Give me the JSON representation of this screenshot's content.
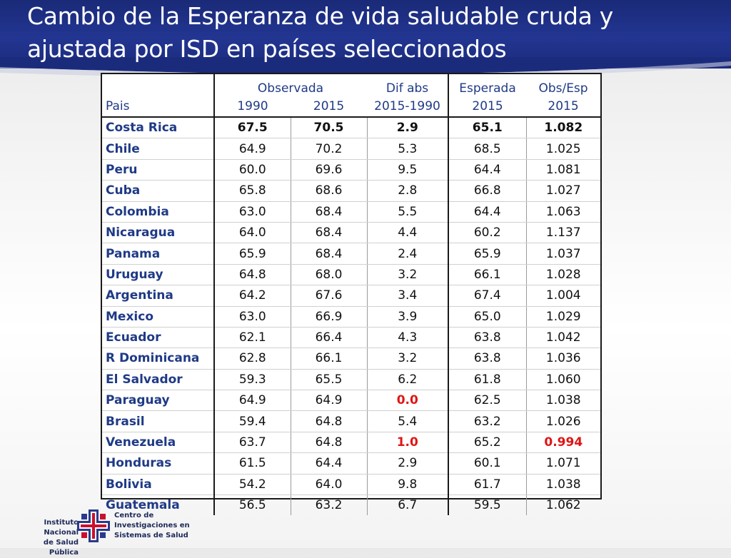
{
  "slide": {
    "title_line1": "Cambio de la Esperanza de vida saludable cruda y",
    "title_line2": "ajustada por ISD en países seleccionados"
  },
  "table": {
    "headers": {
      "pais": "Pais",
      "observada": "Observada",
      "obs_1990": "1990",
      "obs_2015": "2015",
      "dif_abs": "Dif abs",
      "dif_years": "2015-1990",
      "esperada": "Esperada",
      "esp_year": "2015",
      "obs_esp": "Obs/Esp",
      "obs_esp_year": "2015"
    },
    "rows": [
      {
        "pais": "Costa Rica",
        "v1990": "67.5",
        "v2015": "70.5",
        "dif": "2.9",
        "esp": "65.1",
        "ratio": "1.082"
      },
      {
        "pais": "Chile",
        "v1990": "64.9",
        "v2015": "70.2",
        "dif": "5.3",
        "esp": "68.5",
        "ratio": "1.025"
      },
      {
        "pais": "Peru",
        "v1990": "60.0",
        "v2015": "69.6",
        "dif": "9.5",
        "esp": "64.4",
        "ratio": "1.081"
      },
      {
        "pais": "Cuba",
        "v1990": "65.8",
        "v2015": "68.6",
        "dif": "2.8",
        "esp": "66.8",
        "ratio": "1.027"
      },
      {
        "pais": "Colombia",
        "v1990": "63.0",
        "v2015": "68.4",
        "dif": "5.5",
        "esp": "64.4",
        "ratio": "1.063"
      },
      {
        "pais": "Nicaragua",
        "v1990": "64.0",
        "v2015": "68.4",
        "dif": "4.4",
        "esp": "60.2",
        "ratio": "1.137"
      },
      {
        "pais": "Panama",
        "v1990": "65.9",
        "v2015": "68.4",
        "dif": "2.4",
        "esp": "65.9",
        "ratio": "1.037"
      },
      {
        "pais": "Uruguay",
        "v1990": "64.8",
        "v2015": "68.0",
        "dif": "3.2",
        "esp": "66.1",
        "ratio": "1.028"
      },
      {
        "pais": "Argentina",
        "v1990": "64.2",
        "v2015": "67.6",
        "dif": "3.4",
        "esp": "67.4",
        "ratio": "1.004"
      },
      {
        "pais": "Mexico",
        "v1990": "63.0",
        "v2015": "66.9",
        "dif": "3.9",
        "esp": "65.0",
        "ratio": "1.029"
      },
      {
        "pais": "Ecuador",
        "v1990": "62.1",
        "v2015": "66.4",
        "dif": "4.3",
        "esp": "63.8",
        "ratio": "1.042"
      },
      {
        "pais": "R Dominicana",
        "v1990": "62.8",
        "v2015": "66.1",
        "dif": "3.2",
        "esp": "63.8",
        "ratio": "1.036"
      },
      {
        "pais": "El Salvador",
        "v1990": "59.3",
        "v2015": "65.5",
        "dif": "6.2",
        "esp": "61.8",
        "ratio": "1.060"
      },
      {
        "pais": "Paraguay",
        "v1990": "64.9",
        "v2015": "64.9",
        "dif": "0.0",
        "esp": "62.5",
        "ratio": "1.038"
      },
      {
        "pais": "Brasil",
        "v1990": "59.4",
        "v2015": "64.8",
        "dif": "5.4",
        "esp": "63.2",
        "ratio": "1.026"
      },
      {
        "pais": "Venezuela",
        "v1990": "63.7",
        "v2015": "64.8",
        "dif": "1.0",
        "esp": "65.2",
        "ratio": "0.994"
      },
      {
        "pais": "Honduras",
        "v1990": "61.5",
        "v2015": "64.4",
        "dif": "2.9",
        "esp": "60.1",
        "ratio": "1.071"
      },
      {
        "pais": "Bolivia",
        "v1990": "54.2",
        "v2015": "64.0",
        "dif": "9.8",
        "esp": "61.7",
        "ratio": "1.038"
      },
      {
        "pais": "Guatemala",
        "v1990": "56.5",
        "v2015": "63.2",
        "dif": "6.7",
        "esp": "59.5",
        "ratio": "1.062"
      }
    ]
  },
  "colors": {
    "header_band": "#223591",
    "header_text": "#1f3a86",
    "highlight_red": "#e11414"
  },
  "footer": {
    "left_line1": "Instituto Nacional",
    "left_line2": "de Salud Pública",
    "logo_icon": "insp-logo-icon",
    "right_line1": "Centro de",
    "right_line2": "Investigaciones en",
    "right_line3": "Sistemas de Salud"
  }
}
